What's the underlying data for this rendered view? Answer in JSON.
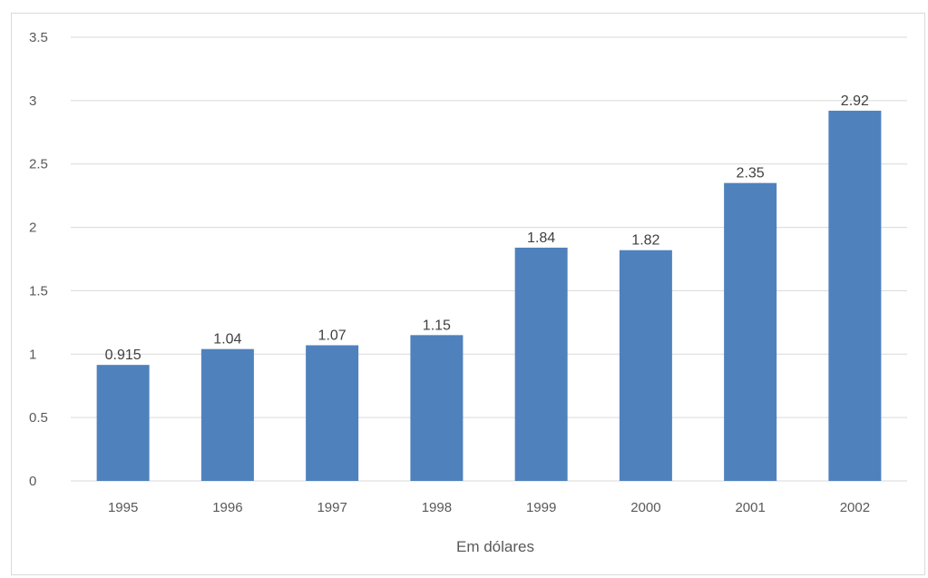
{
  "chart_data": {
    "type": "bar",
    "categories": [
      "1995",
      "1996",
      "1997",
      "1998",
      "1999",
      "2000",
      "2001",
      "2002"
    ],
    "values": [
      0.915,
      1.04,
      1.07,
      1.15,
      1.84,
      1.82,
      2.35,
      2.92
    ],
    "data_labels": [
      "0.915",
      "1.04",
      "1.07",
      "1.15",
      "1.84",
      "1.82",
      "2.35",
      "2.92"
    ],
    "y_ticks": [
      "0",
      "0.5",
      "1",
      "1.5",
      "2",
      "2.5",
      "3",
      "3.5"
    ],
    "xlabel": "Em dólares",
    "ylabel": "",
    "ylim": [
      0,
      3.5
    ],
    "grid": true,
    "legend": "none",
    "colors": {
      "bar": "#4f81bd",
      "grid": "#d9d9d9",
      "text": "#595959"
    }
  }
}
